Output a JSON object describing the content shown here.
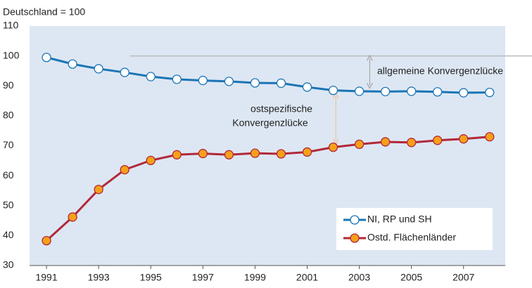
{
  "chart_data": {
    "type": "line",
    "y_label": "Deutschland = 100",
    "x": [
      1991,
      1992,
      1993,
      1994,
      1995,
      1996,
      1997,
      1998,
      1999,
      2000,
      2001,
      2002,
      2003,
      2004,
      2005,
      2006,
      2007,
      2008
    ],
    "series": [
      {
        "name": "NI, RP und SH",
        "color": "#1b75b5",
        "marker_fill": "#ffffff",
        "values": [
          99.5,
          97.3,
          95.7,
          94.5,
          93.1,
          92.2,
          91.8,
          91.5,
          91.0,
          90.9,
          89.6,
          88.5,
          88.2,
          88.1,
          88.2,
          88.0,
          87.7,
          87.8
        ]
      },
      {
        "name": "Ostd. Flächenländer",
        "color": "#b2283a",
        "marker_fill": "#f6a01a",
        "values": [
          38.3,
          46.2,
          55.4,
          62.0,
          65.1,
          67.0,
          67.4,
          67.0,
          67.5,
          67.3,
          67.9,
          69.5,
          70.5,
          71.3,
          71.1,
          71.8,
          72.3,
          73.0
        ]
      }
    ],
    "reference_line": 100,
    "annotations": [
      {
        "text": "allgemeine Konvergenzlücke",
        "color": "#9a9a9a"
      },
      {
        "text": [
          "ostspezifische",
          "Konvergenzlücke"
        ],
        "color": "#f7b98a"
      }
    ],
    "xlim": [
      1990.35,
      2008.6
    ],
    "xticks": [
      1991,
      1993,
      1995,
      1997,
      1999,
      2001,
      2003,
      2005,
      2007
    ],
    "ylim": [
      30,
      110
    ],
    "yticks": [
      30,
      40,
      50,
      60,
      70,
      80,
      90,
      100,
      110
    ],
    "plot_background": "#dde7f3",
    "grid": false,
    "legend": "lower right"
  }
}
